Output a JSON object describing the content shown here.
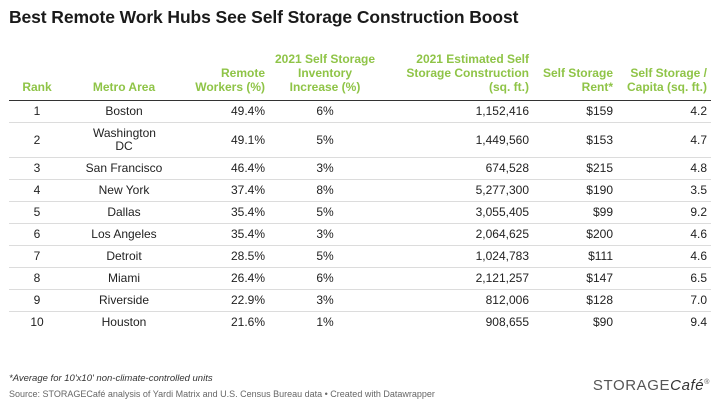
{
  "title": "Best Remote Work Hubs See Self Storage Construction Boost",
  "chart_data": {
    "type": "table",
    "title": "Best Remote Work Hubs See Self Storage Construction Boost",
    "columns": [
      "Rank",
      "Metro Area",
      "Remote Workers (%)",
      "2021 Self Storage Inventory Increase (%)",
      "2021 Estimated Self Storage Construction (sq. ft.)",
      "Self Storage Rent*",
      "Self Storage / Capita (sq. ft.)"
    ],
    "rows": [
      {
        "rank": "1",
        "metro": "Boston",
        "remote": "49.4%",
        "increase": "6%",
        "construction": "1,152,416",
        "rent": "$159",
        "capita": "4.2"
      },
      {
        "rank": "2",
        "metro": "Washington DC",
        "remote": "49.1%",
        "increase": "5%",
        "construction": "1,449,560",
        "rent": "$153",
        "capita": "4.7"
      },
      {
        "rank": "3",
        "metro": "San Francisco",
        "remote": "46.4%",
        "increase": "3%",
        "construction": "674,528",
        "rent": "$215",
        "capita": "4.8"
      },
      {
        "rank": "4",
        "metro": "New York",
        "remote": "37.4%",
        "increase": "8%",
        "construction": "5,277,300",
        "rent": "$190",
        "capita": "3.5"
      },
      {
        "rank": "5",
        "metro": "Dallas",
        "remote": "35.4%",
        "increase": "5%",
        "construction": "3,055,405",
        "rent": "$99",
        "capita": "9.2"
      },
      {
        "rank": "6",
        "metro": "Los Angeles",
        "remote": "35.4%",
        "increase": "3%",
        "construction": "2,064,625",
        "rent": "$200",
        "capita": "4.6"
      },
      {
        "rank": "7",
        "metro": "Detroit",
        "remote": "28.5%",
        "increase": "5%",
        "construction": "1,024,783",
        "rent": "$111",
        "capita": "4.6"
      },
      {
        "rank": "8",
        "metro": "Miami",
        "remote": "26.4%",
        "increase": "6%",
        "construction": "2,121,257",
        "rent": "$147",
        "capita": "6.5"
      },
      {
        "rank": "9",
        "metro": "Riverside",
        "remote": "22.9%",
        "increase": "3%",
        "construction": "812,006",
        "rent": "$128",
        "capita": "7.0"
      },
      {
        "rank": "10",
        "metro": "Houston",
        "remote": "21.6%",
        "increase": "1%",
        "construction": "908,655",
        "rent": "$90",
        "capita": "9.4"
      }
    ],
    "header_color": "#8fc447"
  },
  "footnote": "*Average for 10'x10' non-climate-controlled units",
  "source": "Source: STORAGECafé analysis of Yardi Matrix and U.S. Census Bureau data • Created with Datawrapper",
  "logo": {
    "left": "STORAGE",
    "right": "Café",
    "mark": "®"
  }
}
